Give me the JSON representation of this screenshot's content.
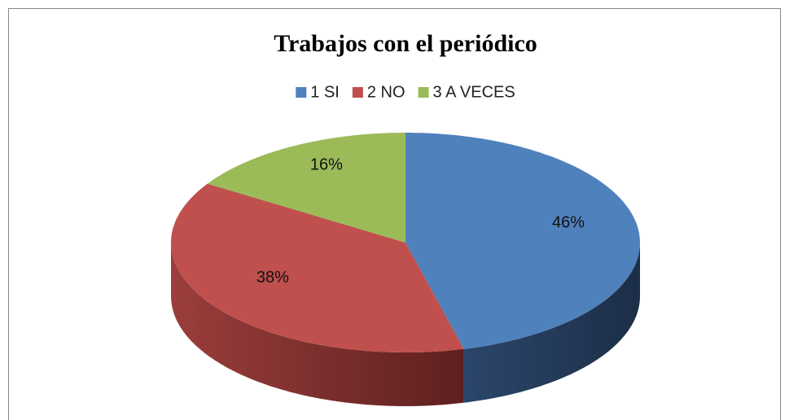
{
  "chart_data": {
    "type": "pie",
    "title": "Trabajos con el periódico",
    "categories": [
      "1 SI",
      "2 NO",
      "3 A VECES"
    ],
    "values": [
      46,
      38,
      16
    ],
    "value_labels": [
      "46%",
      "38%",
      "16%"
    ],
    "colors": [
      "#4f81bd",
      "#c0504d",
      "#9bbb59"
    ],
    "legend": "top"
  }
}
